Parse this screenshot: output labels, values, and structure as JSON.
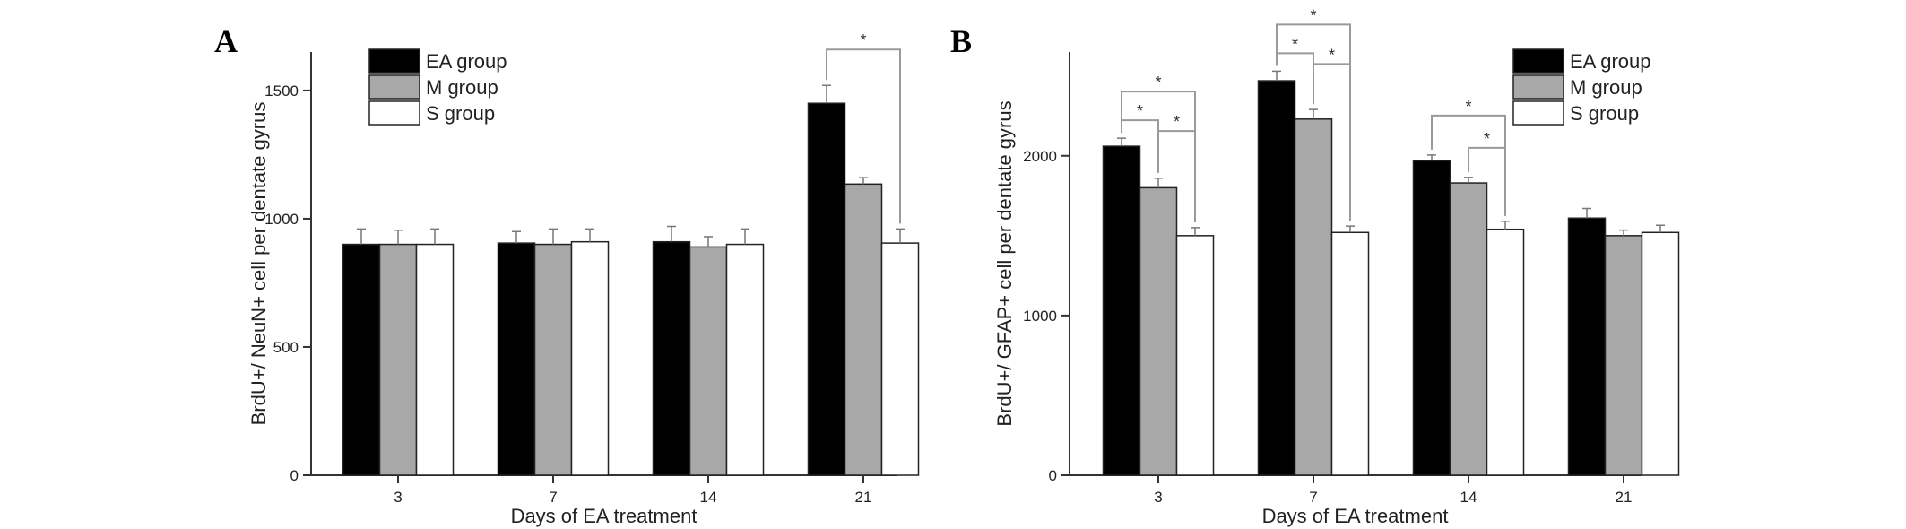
{
  "chart_data": [
    {
      "panel": "A",
      "type": "bar",
      "xlabel": "Days of EA treatment",
      "ylabel": "BrdU+/ NeuN+ cell per dentate gyrus",
      "ylim": [
        0,
        1650
      ],
      "yticks": [
        0,
        500,
        1000,
        1500
      ],
      "categories": [
        "3",
        "7",
        "14",
        "21"
      ],
      "legend_position": "top-left",
      "series": [
        {
          "name": "EA group",
          "color": "#000000",
          "values": [
            900,
            905,
            910,
            1450
          ],
          "errors": [
            60,
            45,
            60,
            70
          ]
        },
        {
          "name": "M group",
          "color": "#a8a8a8",
          "values": [
            900,
            900,
            890,
            1135
          ],
          "errors": [
            55,
            60,
            40,
            25
          ]
        },
        {
          "name": "S group",
          "color": "#ffffff",
          "values": [
            900,
            910,
            900,
            905
          ],
          "errors": [
            60,
            50,
            60,
            55
          ]
        }
      ],
      "significance": [
        {
          "category": 3,
          "from": 0,
          "to": 2,
          "label": "*"
        }
      ]
    },
    {
      "panel": "B",
      "type": "bar",
      "xlabel": "Days of EA treatment",
      "ylabel": "BrdU+/ GFAP+ cell per dentate gyrus",
      "ylim": [
        0,
        2650
      ],
      "yticks": [
        0,
        1000,
        2000
      ],
      "categories": [
        "3",
        "7",
        "14",
        "21"
      ],
      "legend_position": "top-right",
      "series": [
        {
          "name": "EA group",
          "color": "#000000",
          "values": [
            2060,
            2470,
            1970,
            1610
          ],
          "errors": [
            50,
            60,
            35,
            60
          ]
        },
        {
          "name": "M group",
          "color": "#a8a8a8",
          "values": [
            1800,
            2230,
            1830,
            1500
          ],
          "errors": [
            60,
            60,
            35,
            35
          ]
        },
        {
          "name": "S group",
          "color": "#ffffff",
          "values": [
            1500,
            1520,
            1540,
            1520
          ],
          "errors": [
            50,
            40,
            50,
            45
          ]
        }
      ],
      "significance": [
        {
          "category": 0,
          "from": 0,
          "to": 1,
          "label": "*"
        },
        {
          "category": 0,
          "from": 0,
          "to": 2,
          "label": "*"
        },
        {
          "category": 0,
          "from": 1,
          "to": 2,
          "label": "*"
        },
        {
          "category": 1,
          "from": 0,
          "to": 1,
          "label": "*"
        },
        {
          "category": 1,
          "from": 0,
          "to": 2,
          "label": "*"
        },
        {
          "category": 1,
          "from": 1,
          "to": 2,
          "label": "*"
        },
        {
          "category": 2,
          "from": 0,
          "to": 2,
          "label": "*"
        },
        {
          "category": 2,
          "from": 1,
          "to": 2,
          "label": "*"
        }
      ]
    }
  ]
}
